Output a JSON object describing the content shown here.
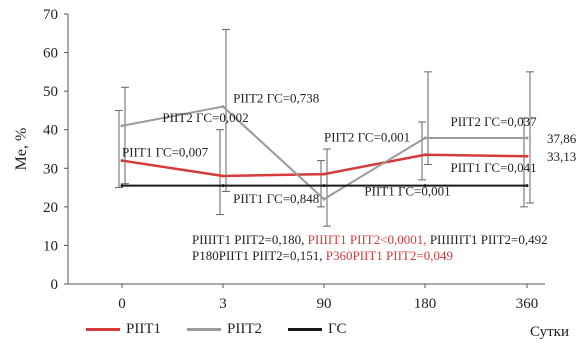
{
  "chart_data": {
    "type": "line",
    "ylabel": "Me, %",
    "xlabel": "Сутки",
    "categories": [
      "0",
      "3",
      "90",
      "180",
      "360"
    ],
    "ylim": [
      0,
      70
    ],
    "yticks": [
      0,
      10,
      20,
      30,
      40,
      50,
      60,
      70
    ],
    "grid": false,
    "legend_position": "bottom",
    "series": [
      {
        "name": "PIIT1",
        "color": "#d63a3a",
        "values": [
          32.0,
          28.0,
          28.5,
          33.5,
          33.13
        ],
        "err_low": [
          25.0,
          18.0,
          20.0,
          27.0,
          20.0
        ],
        "err_high": [
          45.0,
          40.0,
          32.0,
          42.0,
          43.0
        ],
        "end_label": "33,13"
      },
      {
        "name": "PIIT2",
        "color": "#9a9a9a",
        "values": [
          41.0,
          46.0,
          22.0,
          37.86,
          37.86
        ],
        "err_low": [
          26.0,
          24.0,
          15.0,
          31.0,
          21.0
        ],
        "err_high": [
          51.0,
          66.0,
          35.0,
          55.0,
          55.0
        ],
        "end_label": "37,86"
      },
      {
        "name": "ГС",
        "color": "#1a1a1a",
        "values": [
          25.5,
          25.5,
          25.5,
          25.5,
          25.5
        ]
      }
    ],
    "annotations": [
      {
        "text": "PIIT1 ГС=0,007",
        "x": 0,
        "y": 33,
        "color": "#222"
      },
      {
        "text": "PIIT2 ГС=0,002",
        "x": 0.4,
        "y": 42,
        "color": "#222"
      },
      {
        "text": "PIIT2 ГС=0,738",
        "x": 1.1,
        "y": 47,
        "color": "#222"
      },
      {
        "text": "PIIT1 ГС=0,848",
        "x": 1.1,
        "y": 21,
        "color": "#222"
      },
      {
        "text": "PIIT2 ГС=0,001",
        "x": 2.0,
        "y": 37,
        "color": "#222"
      },
      {
        "text": "PIIT1 ГС=0,001",
        "x": 2.4,
        "y": 23,
        "color": "#222"
      },
      {
        "text": "PIIT2 ГС=0,037",
        "x": 3.25,
        "y": 41,
        "color": "#222"
      },
      {
        "text": "PIIT1 ГС=0,041",
        "x": 3.25,
        "y": 29,
        "color": "#222"
      }
    ],
    "stats_lines": [
      [
        {
          "text": "PIIIIT1 PIIT2=0,180, ",
          "color": "#222"
        },
        {
          "text": "PIIIIT1 PIIT2<0,0001, ",
          "color": "#d63a3a"
        },
        {
          "text": "PIIIIIIT1 PIIT2=0,492",
          "color": "#222"
        }
      ],
      [
        {
          "text": "P180PIIT1 PIIT2=0,151, ",
          "color": "#222"
        },
        {
          "text": "P360PIIT1 PIIT2=0,049",
          "color": "#d63a3a"
        }
      ]
    ]
  },
  "legend": {
    "items": [
      {
        "label": "PIIT1",
        "color": "#d63a3a"
      },
      {
        "label": "PIIT2",
        "color": "#9a9a9a"
      },
      {
        "label": "ГС",
        "color": "#1a1a1a"
      }
    ]
  }
}
